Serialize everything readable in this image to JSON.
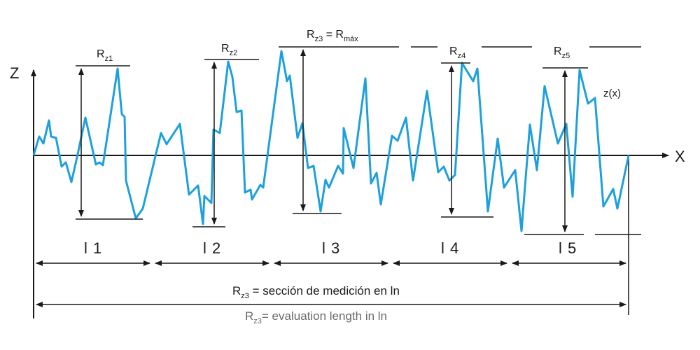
{
  "axes": {
    "vertical_label": "Z",
    "horizontal_label": "X"
  },
  "profile_label": "z(x)",
  "segments": [
    "l 1",
    "l 2",
    "l 3",
    "l 4",
    "l 5"
  ],
  "peak_to_valley": [
    {
      "main": "R",
      "sub": "z1",
      "tail": ""
    },
    {
      "main": "R",
      "sub": "z2",
      "tail": ""
    },
    {
      "main": "R",
      "sub": "z3",
      "tail": " = R",
      "tail_sub": "máx"
    },
    {
      "main": "R",
      "sub": "z4",
      "tail": ""
    },
    {
      "main": "R",
      "sub": "z5",
      "tail": ""
    }
  ],
  "captions": {
    "spanish": {
      "main": "R",
      "sub": "z3",
      "text": " = sección de medición en ln"
    },
    "english": {
      "main": "R",
      "sub": "z3",
      "text": "= evaluation length  in ln"
    }
  },
  "colors": {
    "profile": "#1ea0dc",
    "lines": "#1a1a1a",
    "caption_gray": "#6b6b6b"
  }
}
